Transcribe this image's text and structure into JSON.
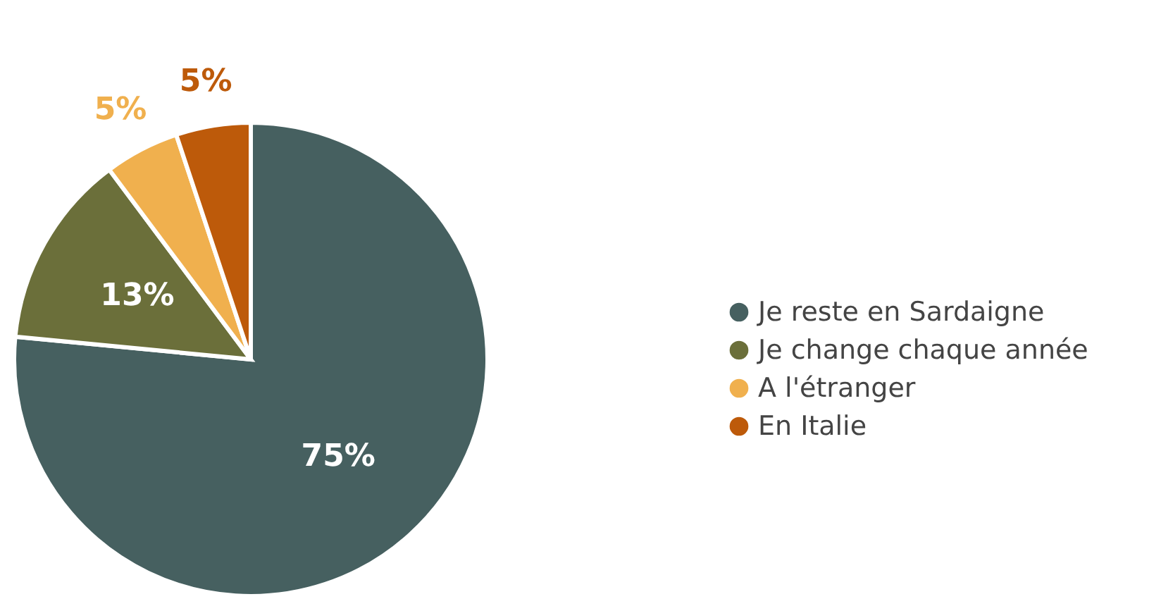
{
  "chart_data": {
    "type": "pie",
    "categories": [
      "Je reste en Sardaigne",
      "Je change chaque année",
      "A l'étranger",
      "En Italie"
    ],
    "values": [
      75,
      13,
      5,
      5
    ],
    "value_labels": [
      "75%",
      "13%",
      "5%",
      "5%"
    ],
    "colors": [
      "#466060",
      "#6b6f3a",
      "#f0b04e",
      "#bd5a0a"
    ],
    "legend": "right"
  }
}
